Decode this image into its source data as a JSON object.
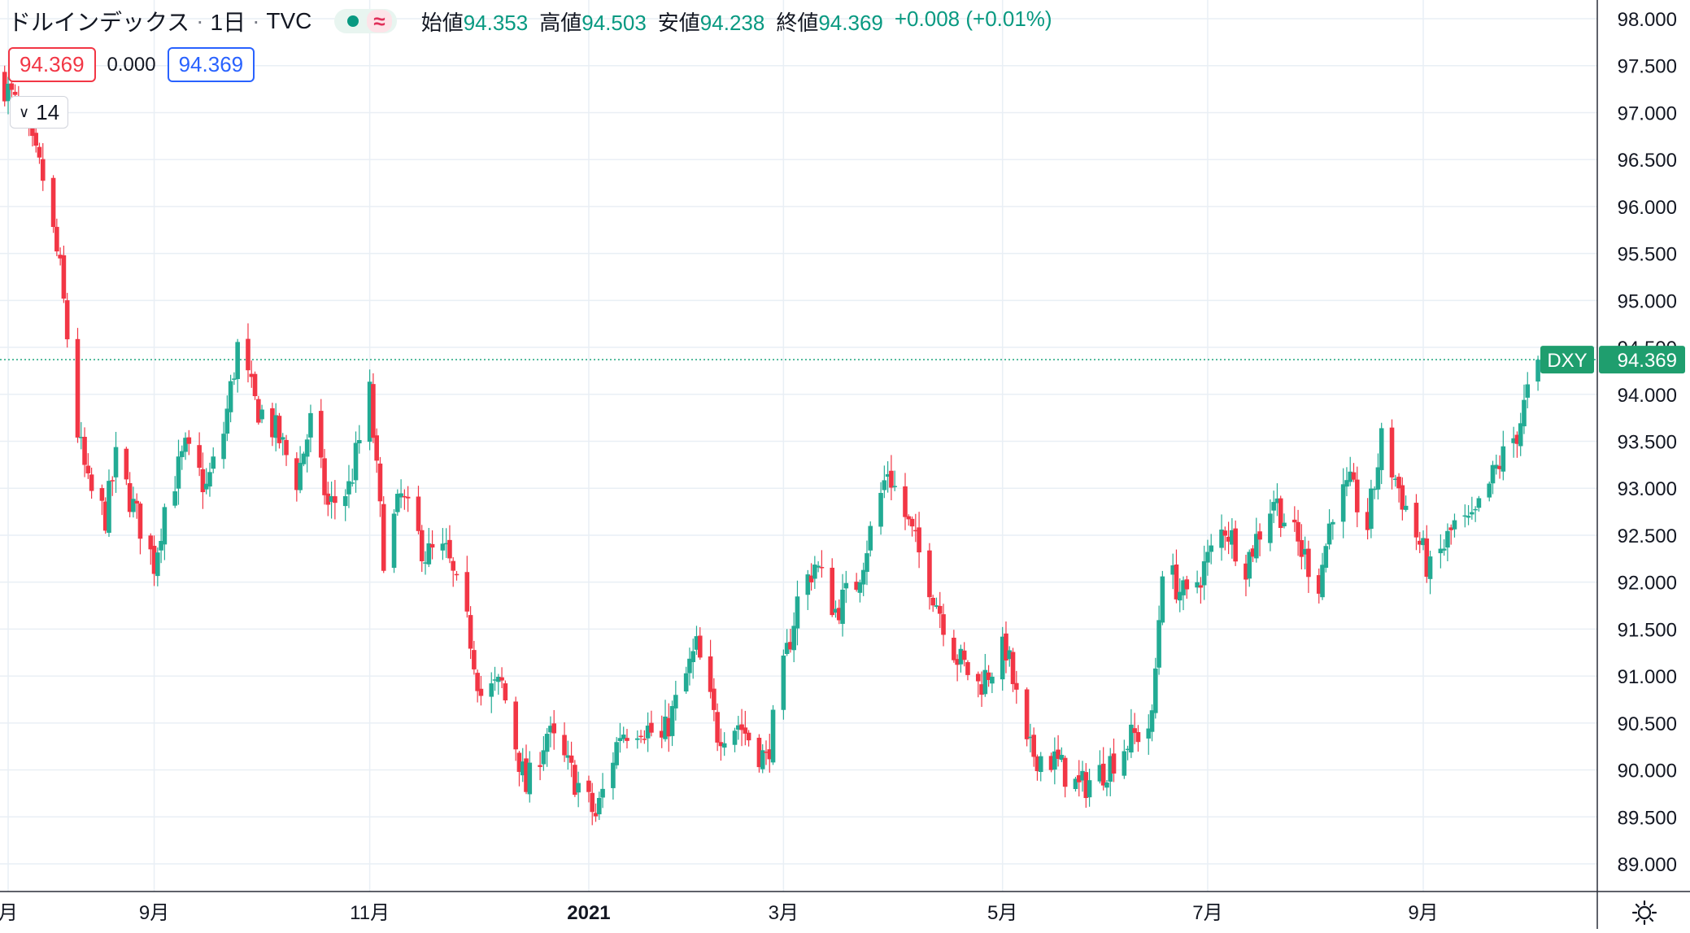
{
  "header": {
    "title": "ドルインデックス",
    "interval": "1日",
    "exchange": "TVC",
    "toggle_symbol": "≈",
    "ohlc": {
      "open_label": "始値",
      "open": "94.353",
      "high_label": "高値",
      "high": "94.503",
      "low_label": "安値",
      "low": "94.238",
      "close_label": "終値",
      "close": "94.369",
      "change": "+0.008 (+0.01%)"
    }
  },
  "quote": {
    "bid": "94.369",
    "spread": "0.000",
    "ask": "94.369"
  },
  "indicator_toggle": {
    "label": "14"
  },
  "price_tag": {
    "symbol": "DXY",
    "value": "94.369"
  },
  "colors": {
    "up": "#22ab94",
    "down": "#f23645",
    "grid": "#e9eff5",
    "current_line": "#1fa67e"
  },
  "chart_data": {
    "type": "candlestick",
    "title": "ドルインデックス",
    "y_ticks": [
      "98.000",
      "97.500",
      "97.000",
      "96.500",
      "96.000",
      "95.500",
      "95.000",
      "94.500",
      "94.000",
      "93.500",
      "93.000",
      "92.500",
      "92.000",
      "91.500",
      "91.000",
      "90.500",
      "90.000",
      "89.500",
      "89.000"
    ],
    "ylim": [
      88.9,
      98.2
    ],
    "x_ticks": [
      {
        "label": "月",
        "date": "2020-07-21",
        "bold": false
      },
      {
        "label": "9月",
        "date": "2020-09-01",
        "bold": false
      },
      {
        "label": "11月",
        "date": "2020-11-02",
        "bold": false
      },
      {
        "label": "2021",
        "date": "2021-01-04",
        "bold": true
      },
      {
        "label": "3月",
        "date": "2021-03-01",
        "bold": false
      },
      {
        "label": "5月",
        "date": "2021-05-03",
        "bold": false
      },
      {
        "label": "7月",
        "date": "2021-07-01",
        "bold": false
      },
      {
        "label": "9月",
        "date": "2021-09-01",
        "bold": false
      }
    ],
    "date_range": [
      "2020-07-20",
      "2021-10-22"
    ],
    "current_price": 94.369,
    "waypoints": [
      [
        "2020-07-20",
        97.3
      ],
      [
        "2020-07-24",
        97.0
      ],
      [
        "2020-07-31",
        96.3
      ],
      [
        "2020-08-05",
        95.3
      ],
      [
        "2020-08-10",
        93.6
      ],
      [
        "2020-08-13",
        93.0
      ],
      [
        "2020-08-18",
        92.7
      ],
      [
        "2020-08-21",
        93.3
      ],
      [
        "2020-08-28",
        92.6
      ],
      [
        "2020-09-01",
        92.2
      ],
      [
        "2020-09-04",
        92.8
      ],
      [
        "2020-09-10",
        93.4
      ],
      [
        "2020-09-16",
        93.0
      ],
      [
        "2020-09-21",
        93.6
      ],
      [
        "2020-09-25",
        94.5
      ],
      [
        "2020-09-30",
        93.9
      ],
      [
        "2020-10-06",
        93.6
      ],
      [
        "2020-10-12",
        93.1
      ],
      [
        "2020-10-16",
        93.7
      ],
      [
        "2020-10-21",
        92.8
      ],
      [
        "2020-10-27",
        93.0
      ],
      [
        "2020-11-02",
        94.0
      ],
      [
        "2020-11-06",
        92.3
      ],
      [
        "2020-11-11",
        92.9
      ],
      [
        "2020-11-18",
        92.3
      ],
      [
        "2020-11-24",
        92.3
      ],
      [
        "2020-12-01",
        91.4
      ],
      [
        "2020-12-04",
        90.8
      ],
      [
        "2020-12-10",
        90.9
      ],
      [
        "2020-12-17",
        89.8
      ],
      [
        "2020-12-23",
        90.4
      ],
      [
        "2020-12-31",
        89.9
      ],
      [
        "2021-01-06",
        89.5
      ],
      [
        "2021-01-13",
        90.4
      ],
      [
        "2021-01-19",
        90.5
      ],
      [
        "2021-01-25",
        90.3
      ],
      [
        "2021-02-04",
        91.3
      ],
      [
        "2021-02-10",
        90.4
      ],
      [
        "2021-02-16",
        90.5
      ],
      [
        "2021-02-24",
        90.1
      ],
      [
        "2021-03-05",
        91.8
      ],
      [
        "2021-03-10",
        92.2
      ],
      [
        "2021-03-16",
        91.7
      ],
      [
        "2021-03-22",
        92.0
      ],
      [
        "2021-03-31",
        93.2
      ],
      [
        "2021-04-06",
        92.6
      ],
      [
        "2021-04-12",
        92.0
      ],
      [
        "2021-04-20",
        91.2
      ],
      [
        "2021-04-26",
        90.9
      ],
      [
        "2021-05-04",
        91.3
      ],
      [
        "2021-05-10",
        90.2
      ],
      [
        "2021-05-18",
        90.1
      ],
      [
        "2021-05-25",
        89.8
      ],
      [
        "2021-06-01",
        90.0
      ],
      [
        "2021-06-08",
        90.3
      ],
      [
        "2021-06-15",
        90.5
      ],
      [
        "2021-06-18",
        92.2
      ],
      [
        "2021-06-25",
        91.8
      ],
      [
        "2021-07-06",
        92.6
      ],
      [
        "2021-07-12",
        92.2
      ],
      [
        "2021-07-20",
        92.9
      ],
      [
        "2021-07-27",
        92.4
      ],
      [
        "2021-08-02",
        92.0
      ],
      [
        "2021-08-06",
        92.8
      ],
      [
        "2021-08-11",
        93.0
      ],
      [
        "2021-08-16",
        92.6
      ],
      [
        "2021-08-20",
        93.5
      ],
      [
        "2021-08-27",
        92.8
      ],
      [
        "2021-09-03",
        92.1
      ],
      [
        "2021-09-10",
        92.6
      ],
      [
        "2021-09-15",
        92.6
      ],
      [
        "2021-09-22",
        93.2
      ],
      [
        "2021-09-28",
        93.6
      ],
      [
        "2021-10-01",
        94.0
      ],
      [
        "2021-10-04",
        94.37
      ]
    ]
  }
}
